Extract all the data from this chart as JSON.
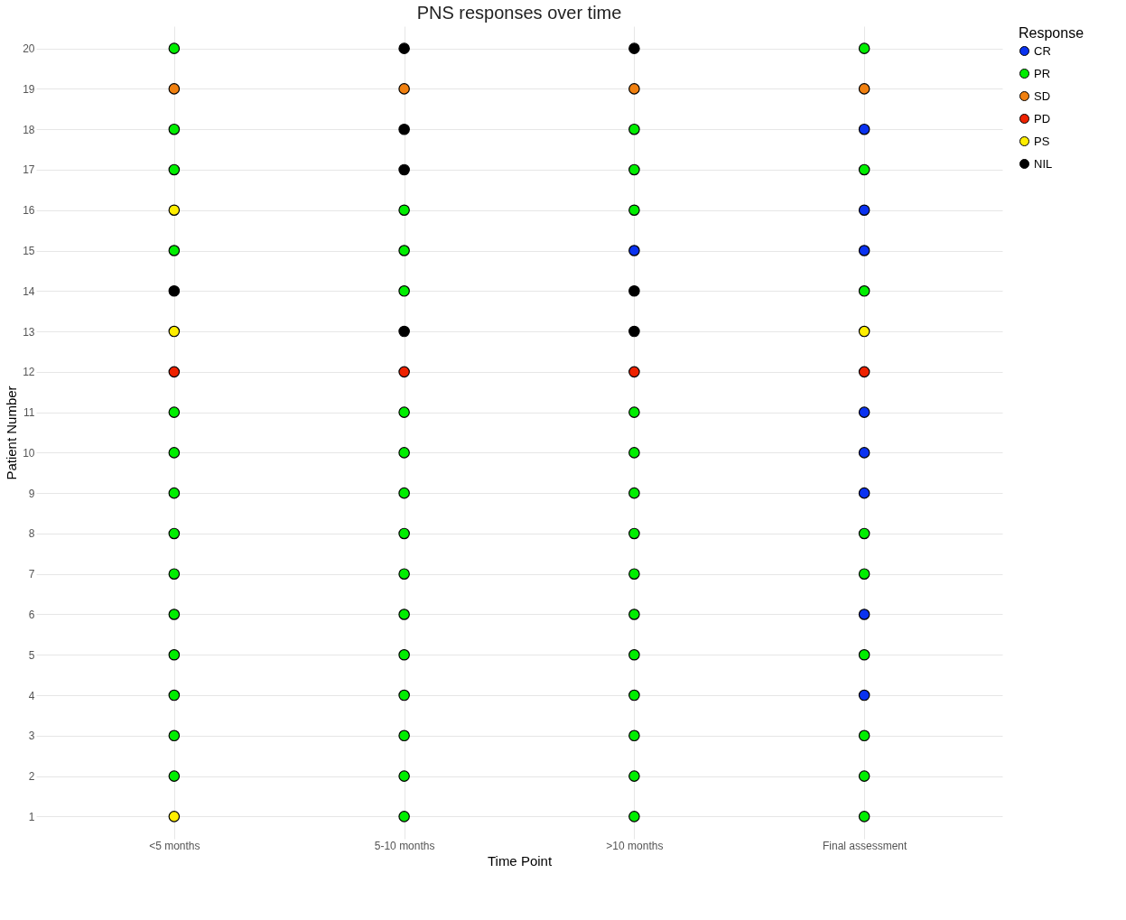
{
  "chart_data": {
    "type": "scatter",
    "title": "PNS responses over time",
    "xlabel": "Time Point",
    "ylabel": "Patient Number",
    "legend_title": "Response",
    "categories": [
      "<5 months",
      "5-10 months",
      ">10 months",
      "Final assessment"
    ],
    "ylim": [
      0.45,
      20.55
    ],
    "yticks": [
      1,
      2,
      3,
      4,
      5,
      6,
      7,
      8,
      9,
      10,
      11,
      12,
      13,
      14,
      15,
      16,
      17,
      18,
      19,
      20
    ],
    "grid": true,
    "legend": "right",
    "marker": "circle",
    "series": [
      {
        "name": "CR",
        "color": "#0a32f0",
        "x": [
          ">10 months",
          "Final assessment",
          "Final assessment",
          "Final assessment",
          "Final assessment",
          "Final assessment",
          "Final assessment",
          "Final assessment",
          "Final assessment"
        ],
        "values": [
          15,
          18,
          16,
          15,
          11,
          10,
          9,
          6,
          4
        ]
      },
      {
        "name": "PR",
        "color": "#00ee00",
        "x": [
          "<5 months",
          "<5 months",
          "<5 months",
          "<5 months",
          "<5 months",
          "<5 months",
          "<5 months",
          "<5 months",
          "<5 months",
          "<5 months",
          "<5 months",
          "<5 months",
          "<5 months",
          "<5 months",
          "5-10 months",
          "5-10 months",
          "5-10 months",
          "5-10 months",
          "5-10 months",
          "5-10 months",
          "5-10 months",
          "5-10 months",
          "5-10 months",
          "5-10 months",
          "5-10 months",
          "5-10 months",
          "5-10 months",
          "5-10 months",
          ">10 months",
          ">10 months",
          ">10 months",
          ">10 months",
          ">10 months",
          ">10 months",
          ">10 months",
          ">10 months",
          ">10 months",
          ">10 months",
          ">10 months",
          ">10 months",
          ">10 months",
          ">10 months",
          "Final assessment",
          "Final assessment",
          "Final assessment",
          "Final assessment",
          "Final assessment",
          "Final assessment",
          "Final assessment",
          "Final assessment",
          "Final assessment"
        ],
        "values": [
          20,
          18,
          17,
          15,
          11,
          10,
          9,
          8,
          7,
          6,
          5,
          4,
          3,
          2,
          16,
          15,
          14,
          11,
          10,
          9,
          8,
          7,
          6,
          5,
          4,
          3,
          2,
          1,
          18,
          17,
          16,
          11,
          10,
          9,
          8,
          7,
          6,
          5,
          4,
          3,
          2,
          1,
          20,
          17,
          14,
          8,
          7,
          5,
          3,
          2,
          1
        ]
      },
      {
        "name": "SD",
        "color": "#f08010",
        "x": [
          "<5 months",
          "5-10 months",
          ">10 months",
          "Final assessment"
        ],
        "values": [
          19,
          19,
          19,
          19
        ]
      },
      {
        "name": "PD",
        "color": "#ee2200",
        "x": [
          "<5 months",
          "5-10 months",
          ">10 months",
          "Final assessment"
        ],
        "values": [
          12,
          12,
          12,
          12
        ]
      },
      {
        "name": "PS",
        "color": "#ffee00",
        "x": [
          "<5 months",
          "<5 months",
          "<5 months",
          "Final assessment"
        ],
        "values": [
          16,
          13,
          1,
          13
        ]
      },
      {
        "name": "NIL",
        "color": "#000000",
        "x": [
          "<5 months",
          "5-10 months",
          "5-10 months",
          "5-10 months",
          "5-10 months",
          ">10 months",
          ">10 months",
          ">10 months"
        ],
        "values": [
          14,
          20,
          18,
          17,
          13,
          20,
          14,
          13
        ]
      }
    ]
  }
}
